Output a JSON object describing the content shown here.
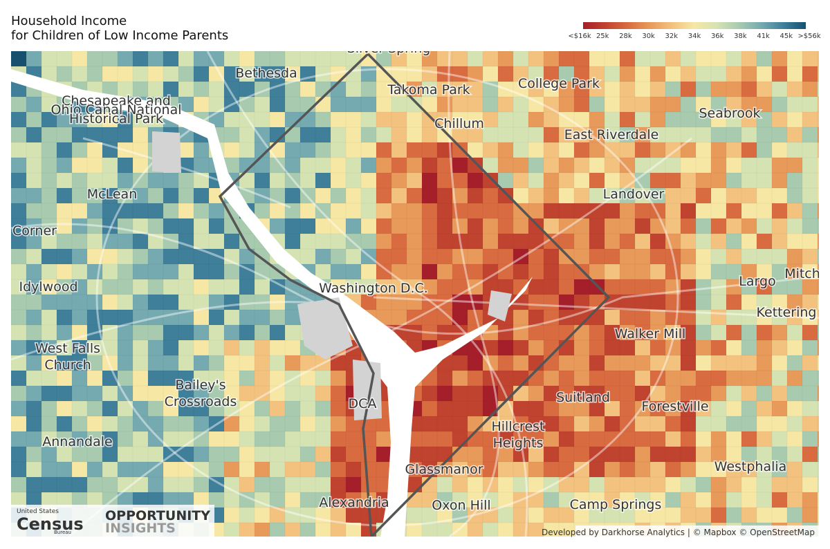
{
  "header": {
    "title_lines": [
      "Household Income",
      "for Children of Low Income Parents"
    ]
  },
  "legend": {
    "labels": [
      "<$16k",
      "25k",
      "28k",
      "30k",
      "32k",
      "34k",
      "36k",
      "38k",
      "41k",
      "45k",
      ">$56k"
    ],
    "colors": [
      "#a51f2a",
      "#c0432f",
      "#d86b3f",
      "#e89a5a",
      "#f2c27e",
      "#f7e7a5",
      "#d5e3b3",
      "#a8cbb0",
      "#75aab0",
      "#3f7f9a",
      "#17506f"
    ]
  },
  "places": [
    {
      "lines": [
        "Silver Spring"
      ]
    },
    {
      "lines": [
        "Bethesda"
      ]
    },
    {
      "lines": [
        "Takoma Park"
      ]
    },
    {
      "lines": [
        "College Park"
      ]
    },
    {
      "lines": [
        "Chesapeake and",
        "Ohio Canal National",
        "Historical Park"
      ]
    },
    {
      "lines": [
        "Chillum"
      ]
    },
    {
      "lines": [
        "Seabrook"
      ]
    },
    {
      "lines": [
        "East Riverdale"
      ]
    },
    {
      "lines": [
        "McLean"
      ]
    },
    {
      "lines": [
        "Landover"
      ]
    },
    {
      "lines": [
        "Corner"
      ]
    },
    {
      "lines": [
        "Idylwood"
      ]
    },
    {
      "lines": [
        "Washington D.C."
      ]
    },
    {
      "lines": [
        "Largo"
      ]
    },
    {
      "lines": [
        "Mitch"
      ]
    },
    {
      "lines": [
        "Kettering"
      ]
    },
    {
      "lines": [
        "Walker Mill"
      ]
    },
    {
      "lines": [
        "West Falls",
        "Church"
      ]
    },
    {
      "lines": [
        "Bailey's",
        "Crossroads"
      ]
    },
    {
      "lines": [
        "DCA"
      ]
    },
    {
      "lines": [
        "Suitland"
      ]
    },
    {
      "lines": [
        "Forestville"
      ]
    },
    {
      "lines": [
        "Hillcrest",
        "Heights"
      ]
    },
    {
      "lines": [
        "Annandale"
      ]
    },
    {
      "lines": [
        "Glassmanor"
      ]
    },
    {
      "lines": [
        "Westphalia"
      ]
    },
    {
      "lines": [
        "Alexandria"
      ]
    },
    {
      "lines": [
        "Oxon Hill"
      ]
    },
    {
      "lines": [
        "Camp Springs"
      ]
    }
  ],
  "logos": {
    "census_top": "United States",
    "census_main": "Census",
    "census_sub": "Bureau",
    "oi_top": "OPPORTUNITY",
    "oi_bottom": "INSIGHTS"
  },
  "attribution": "Developed by Darkhorse Analytics | © Mapbox © OpenStreetMap"
}
